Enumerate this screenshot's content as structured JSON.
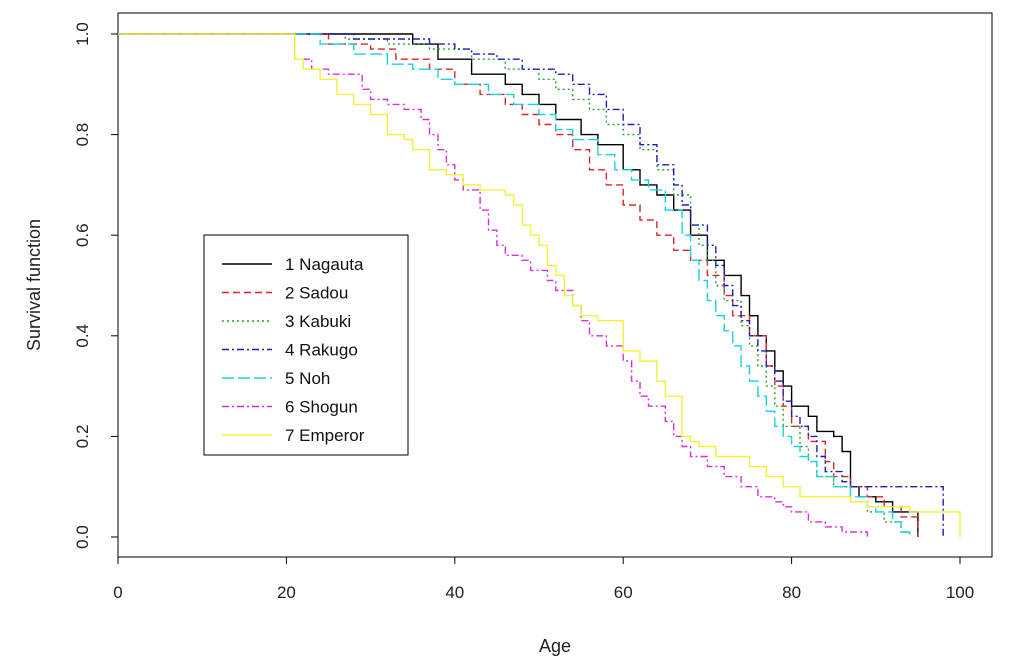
{
  "chart_data": {
    "type": "line",
    "title": "",
    "xlabel": "Age",
    "ylabel": "Survival function",
    "xlim": [
      0,
      100
    ],
    "ylim": [
      0,
      1
    ],
    "x_ticks": [
      "0",
      "20",
      "40",
      "60",
      "80",
      "100"
    ],
    "y_ticks": [
      "0.0",
      "0.2",
      "0.4",
      "0.6",
      "0.8",
      "1.0"
    ],
    "legend_position": "center-left",
    "grid": false,
    "series": [
      {
        "name": "1 Nagauta",
        "color": "#000000",
        "dash": "solid",
        "points": [
          [
            0,
            1.0
          ],
          [
            33,
            1.0
          ],
          [
            35,
            0.98
          ],
          [
            38,
            0.95
          ],
          [
            42,
            0.92
          ],
          [
            46,
            0.9
          ],
          [
            48,
            0.88
          ],
          [
            50,
            0.86
          ],
          [
            52,
            0.83
          ],
          [
            55,
            0.8
          ],
          [
            57,
            0.78
          ],
          [
            60,
            0.73
          ],
          [
            62,
            0.7
          ],
          [
            64,
            0.68
          ],
          [
            66,
            0.65
          ],
          [
            68,
            0.6
          ],
          [
            70,
            0.55
          ],
          [
            72,
            0.52
          ],
          [
            74,
            0.48
          ],
          [
            75,
            0.44
          ],
          [
            76,
            0.4
          ],
          [
            77,
            0.37
          ],
          [
            78,
            0.33
          ],
          [
            79,
            0.3
          ],
          [
            80,
            0.26
          ],
          [
            82,
            0.24
          ],
          [
            83,
            0.21
          ],
          [
            85,
            0.2
          ],
          [
            86,
            0.17
          ],
          [
            87,
            0.1
          ],
          [
            88,
            0.08
          ],
          [
            90,
            0.07
          ],
          [
            92,
            0.05
          ],
          [
            94,
            0.05
          ],
          [
            95,
            0.0
          ]
        ]
      },
      {
        "name": "2 Sadou",
        "color": "#d62728",
        "dash": "dashed",
        "points": [
          [
            0,
            1.0
          ],
          [
            21,
            1.0
          ],
          [
            25,
            0.98
          ],
          [
            30,
            0.97
          ],
          [
            33,
            0.95
          ],
          [
            37,
            0.93
          ],
          [
            40,
            0.9
          ],
          [
            43,
            0.88
          ],
          [
            46,
            0.86
          ],
          [
            48,
            0.84
          ],
          [
            50,
            0.82
          ],
          [
            52,
            0.8
          ],
          [
            54,
            0.77
          ],
          [
            56,
            0.73
          ],
          [
            58,
            0.7
          ],
          [
            60,
            0.66
          ],
          [
            62,
            0.63
          ],
          [
            64,
            0.6
          ],
          [
            66,
            0.57
          ],
          [
            68,
            0.55
          ],
          [
            70,
            0.52
          ],
          [
            72,
            0.48
          ],
          [
            73,
            0.44
          ],
          [
            75,
            0.4
          ],
          [
            77,
            0.34
          ],
          [
            78,
            0.3
          ],
          [
            79,
            0.26
          ],
          [
            80,
            0.22
          ],
          [
            82,
            0.19
          ],
          [
            84,
            0.15
          ],
          [
            85,
            0.12
          ],
          [
            87,
            0.1
          ],
          [
            89,
            0.08
          ],
          [
            91,
            0.06
          ],
          [
            93,
            0.04
          ],
          [
            94,
            0.04
          ],
          [
            95,
            0.0
          ]
        ]
      },
      {
        "name": "3 Kabuki",
        "color": "#2ca02c",
        "dash": "dotted",
        "points": [
          [
            0,
            1.0
          ],
          [
            22,
            1.0
          ],
          [
            27,
            0.99
          ],
          [
            32,
            0.98
          ],
          [
            37,
            0.97
          ],
          [
            42,
            0.95
          ],
          [
            46,
            0.93
          ],
          [
            50,
            0.91
          ],
          [
            52,
            0.89
          ],
          [
            54,
            0.87
          ],
          [
            56,
            0.85
          ],
          [
            58,
            0.82
          ],
          [
            60,
            0.8
          ],
          [
            62,
            0.77
          ],
          [
            64,
            0.73
          ],
          [
            66,
            0.68
          ],
          [
            68,
            0.62
          ],
          [
            69,
            0.58
          ],
          [
            70,
            0.55
          ],
          [
            71,
            0.5
          ],
          [
            72,
            0.47
          ],
          [
            74,
            0.42
          ],
          [
            75,
            0.38
          ],
          [
            76,
            0.34
          ],
          [
            77,
            0.3
          ],
          [
            78,
            0.26
          ],
          [
            79,
            0.22
          ],
          [
            81,
            0.18
          ],
          [
            82,
            0.15
          ],
          [
            83,
            0.12
          ],
          [
            85,
            0.1
          ],
          [
            87,
            0.07
          ],
          [
            89,
            0.05
          ],
          [
            91,
            0.03
          ],
          [
            93,
            0.01
          ],
          [
            94,
            0.0
          ]
        ]
      },
      {
        "name": "4 Rakugo",
        "color": "#1f1fb4",
        "dash": "dashdot",
        "points": [
          [
            0,
            1.0
          ],
          [
            22,
            1.0
          ],
          [
            28,
            0.99
          ],
          [
            33,
            0.99
          ],
          [
            37,
            0.98
          ],
          [
            40,
            0.97
          ],
          [
            42,
            0.96
          ],
          [
            45,
            0.95
          ],
          [
            48,
            0.93
          ],
          [
            52,
            0.92
          ],
          [
            54,
            0.9
          ],
          [
            56,
            0.88
          ],
          [
            58,
            0.85
          ],
          [
            60,
            0.82
          ],
          [
            62,
            0.78
          ],
          [
            64,
            0.74
          ],
          [
            66,
            0.7
          ],
          [
            67,
            0.66
          ],
          [
            68,
            0.62
          ],
          [
            70,
            0.58
          ],
          [
            71,
            0.54
          ],
          [
            72,
            0.5
          ],
          [
            73,
            0.46
          ],
          [
            74,
            0.43
          ],
          [
            75,
            0.4
          ],
          [
            76,
            0.37
          ],
          [
            77,
            0.34
          ],
          [
            78,
            0.31
          ],
          [
            79,
            0.27
          ],
          [
            80,
            0.24
          ],
          [
            81,
            0.22
          ],
          [
            82,
            0.2
          ],
          [
            83,
            0.16
          ],
          [
            84,
            0.13
          ],
          [
            86,
            0.11
          ],
          [
            87,
            0.1
          ],
          [
            89,
            0.1
          ],
          [
            91,
            0.1
          ],
          [
            94,
            0.1
          ],
          [
            96,
            0.1
          ],
          [
            98,
            0.1
          ],
          [
            98,
            0.0
          ]
        ]
      },
      {
        "name": "5 Noh",
        "color": "#17d4e0",
        "dash": "longdash",
        "points": [
          [
            0,
            1.0
          ],
          [
            20,
            1.0
          ],
          [
            24,
            0.98
          ],
          [
            28,
            0.96
          ],
          [
            32,
            0.94
          ],
          [
            35,
            0.93
          ],
          [
            38,
            0.91
          ],
          [
            40,
            0.9
          ],
          [
            44,
            0.88
          ],
          [
            47,
            0.86
          ],
          [
            50,
            0.84
          ],
          [
            52,
            0.81
          ],
          [
            54,
            0.79
          ],
          [
            57,
            0.76
          ],
          [
            59,
            0.73
          ],
          [
            61,
            0.71
          ],
          [
            63,
            0.69
          ],
          [
            65,
            0.65
          ],
          [
            67,
            0.6
          ],
          [
            68,
            0.55
          ],
          [
            69,
            0.51
          ],
          [
            70,
            0.47
          ],
          [
            71,
            0.44
          ],
          [
            72,
            0.41
          ],
          [
            73,
            0.38
          ],
          [
            74,
            0.34
          ],
          [
            75,
            0.31
          ],
          [
            76,
            0.28
          ],
          [
            77,
            0.25
          ],
          [
            78,
            0.22
          ],
          [
            79,
            0.2
          ],
          [
            80,
            0.18
          ],
          [
            81,
            0.16
          ],
          [
            82,
            0.15
          ],
          [
            83,
            0.12
          ],
          [
            85,
            0.1
          ],
          [
            87,
            0.08
          ],
          [
            89,
            0.06
          ],
          [
            90,
            0.05
          ],
          [
            92,
            0.03
          ],
          [
            93,
            0.01
          ],
          [
            94,
            0.0
          ]
        ]
      },
      {
        "name": "6 Shogun",
        "color": "#d631d6",
        "dash": "dashdot",
        "points": [
          [
            0,
            1.0
          ],
          [
            20,
            1.0
          ],
          [
            21,
            0.95
          ],
          [
            23,
            0.93
          ],
          [
            25,
            0.92
          ],
          [
            29,
            0.89
          ],
          [
            30,
            0.87
          ],
          [
            32,
            0.86
          ],
          [
            34,
            0.85
          ],
          [
            36,
            0.83
          ],
          [
            37,
            0.8
          ],
          [
            38,
            0.77
          ],
          [
            39,
            0.74
          ],
          [
            40,
            0.71
          ],
          [
            41,
            0.69
          ],
          [
            43,
            0.65
          ],
          [
            44,
            0.61
          ],
          [
            45,
            0.58
          ],
          [
            46,
            0.56
          ],
          [
            48,
            0.55
          ],
          [
            49,
            0.53
          ],
          [
            51,
            0.51
          ],
          [
            52,
            0.49
          ],
          [
            54,
            0.46
          ],
          [
            55,
            0.43
          ],
          [
            56,
            0.4
          ],
          [
            58,
            0.38
          ],
          [
            60,
            0.35
          ],
          [
            61,
            0.31
          ],
          [
            62,
            0.28
          ],
          [
            63,
            0.26
          ],
          [
            65,
            0.23
          ],
          [
            66,
            0.2
          ],
          [
            67,
            0.18
          ],
          [
            68,
            0.16
          ],
          [
            70,
            0.14
          ],
          [
            72,
            0.12
          ],
          [
            74,
            0.1
          ],
          [
            76,
            0.08
          ],
          [
            78,
            0.07
          ],
          [
            79,
            0.06
          ],
          [
            80,
            0.05
          ],
          [
            82,
            0.03
          ],
          [
            84,
            0.02
          ],
          [
            86,
            0.01
          ],
          [
            88,
            0.01
          ],
          [
            89,
            0.0
          ]
        ]
      },
      {
        "name": "7 Emperor",
        "color": "#f2f23a",
        "dash": "solid",
        "points": [
          [
            0,
            1.0
          ],
          [
            20,
            1.0
          ],
          [
            21,
            0.95
          ],
          [
            22,
            0.93
          ],
          [
            24,
            0.91
          ],
          [
            26,
            0.88
          ],
          [
            28,
            0.86
          ],
          [
            30,
            0.84
          ],
          [
            32,
            0.8
          ],
          [
            34,
            0.79
          ],
          [
            35,
            0.77
          ],
          [
            37,
            0.73
          ],
          [
            39,
            0.72
          ],
          [
            41,
            0.7
          ],
          [
            43,
            0.69
          ],
          [
            45,
            0.69
          ],
          [
            46,
            0.68
          ],
          [
            47,
            0.66
          ],
          [
            48,
            0.62
          ],
          [
            49,
            0.6
          ],
          [
            50,
            0.58
          ],
          [
            51,
            0.54
          ],
          [
            52,
            0.52
          ],
          [
            53,
            0.48
          ],
          [
            54,
            0.46
          ],
          [
            55,
            0.44
          ],
          [
            57,
            0.43
          ],
          [
            59,
            0.43
          ],
          [
            60,
            0.37
          ],
          [
            62,
            0.35
          ],
          [
            64,
            0.31
          ],
          [
            65,
            0.28
          ],
          [
            67,
            0.2
          ],
          [
            68,
            0.19
          ],
          [
            69,
            0.18
          ],
          [
            71,
            0.16
          ],
          [
            73,
            0.16
          ],
          [
            75,
            0.14
          ],
          [
            77,
            0.12
          ],
          [
            79,
            0.1
          ],
          [
            81,
            0.08
          ],
          [
            85,
            0.08
          ],
          [
            87,
            0.07
          ],
          [
            89,
            0.06
          ],
          [
            91,
            0.06
          ],
          [
            94,
            0.05
          ],
          [
            99,
            0.05
          ],
          [
            100,
            0.0
          ]
        ]
      }
    ]
  }
}
